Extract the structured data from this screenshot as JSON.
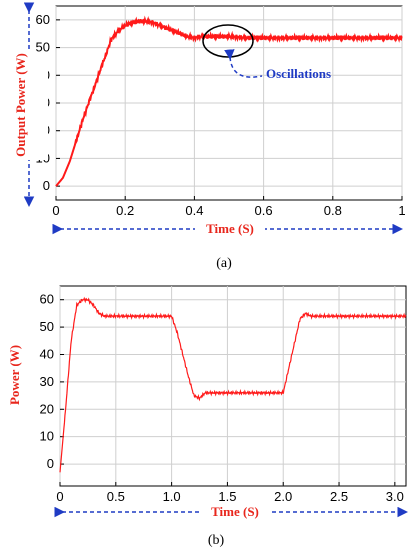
{
  "colors": {
    "series": "#ff1a1a",
    "axis_label": "#e8261c",
    "arrow": "#1f3bc4",
    "grid": "#cfcfcf"
  },
  "chart_data": [
    {
      "type": "line",
      "panel_label": "(a)",
      "xlabel": "Time (S)",
      "ylabel": "Output Power (W)",
      "xlim": [
        0,
        1
      ],
      "ylim": [
        -5,
        65
      ],
      "x_ticks": [
        "0",
        "0.2",
        "0.4",
        "0.6",
        "0.8",
        "1"
      ],
      "y_ticks": [
        "0",
        "10",
        "20",
        "30",
        "40",
        "50",
        "60"
      ],
      "grid": true,
      "annotation": "Oscillations",
      "series": [
        {
          "x": [
            0,
            0.02,
            0.04,
            0.06,
            0.08,
            0.1,
            0.12,
            0.14,
            0.16,
            0.18,
            0.2,
            0.22,
            0.24,
            0.26,
            0.28,
            0.3,
            0.32,
            0.34,
            0.36,
            0.38,
            0.4,
            0.42,
            0.45,
            0.5,
            0.55,
            0.6,
            0.7,
            0.8,
            0.9,
            1.0
          ],
          "y": [
            0,
            3,
            9,
            17,
            25,
            32,
            39,
            46,
            53,
            56,
            58,
            59,
            59.5,
            59.5,
            59,
            58,
            57,
            56,
            55,
            54,
            53.5,
            54,
            54,
            54,
            53.5,
            53.5,
            53.5,
            53.5,
            53.5,
            53.5
          ],
          "oscillation_amplitude": 0.8
        }
      ]
    },
    {
      "type": "line",
      "panel_label": "(b)",
      "xlabel": "Time (S)",
      "ylabel": "Power (W)",
      "xlim": [
        0,
        3.1
      ],
      "ylim": [
        -8,
        65
      ],
      "x_ticks": [
        "0",
        "0.5",
        "1.0",
        "1.5",
        "2.0",
        "2.5",
        "3.0"
      ],
      "y_ticks": [
        "0",
        "10",
        "20",
        "30",
        "40",
        "50",
        "60"
      ],
      "grid": true,
      "series": [
        {
          "x": [
            0,
            0.05,
            0.1,
            0.15,
            0.2,
            0.25,
            0.3,
            0.35,
            0.4,
            0.5,
            0.7,
            0.9,
            1.0,
            1.05,
            1.1,
            1.15,
            1.2,
            1.25,
            1.3,
            1.5,
            1.8,
            2.0,
            2.05,
            2.1,
            2.15,
            2.2,
            2.25,
            2.5,
            3.0,
            3.1
          ],
          "y": [
            -3,
            20,
            45,
            58,
            60,
            60,
            58,
            55,
            54,
            54,
            54,
            54,
            54,
            48,
            40,
            32,
            25,
            24,
            26,
            26,
            26,
            26,
            35,
            44,
            53,
            55,
            54,
            54,
            54,
            54
          ],
          "oscillation_amplitude": 0.6
        }
      ]
    }
  ]
}
